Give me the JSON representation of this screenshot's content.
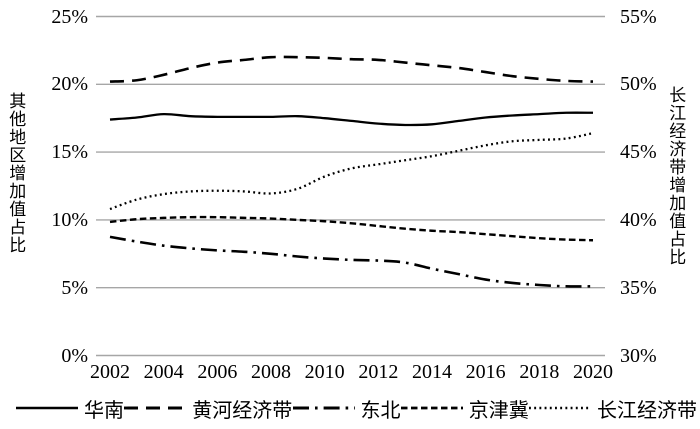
{
  "chart_data": {
    "type": "line",
    "x": [
      2002,
      2003,
      2004,
      2005,
      2006,
      2007,
      2008,
      2009,
      2010,
      2011,
      2012,
      2013,
      2014,
      2015,
      2016,
      2017,
      2018,
      2019,
      2020
    ],
    "x_ticks": [
      "2002",
      "2004",
      "2006",
      "2008",
      "2010",
      "2012",
      "2014",
      "2016",
      "2018",
      "2020"
    ],
    "left_axis": {
      "title": "其他地区增加值占比",
      "ticks": [
        "25%",
        "20%",
        "15%",
        "10%",
        "5%",
        "0%"
      ],
      "range": [
        0,
        25
      ]
    },
    "right_axis": {
      "title": "长江经济带增加值占比",
      "ticks": [
        "55%",
        "50%",
        "45%",
        "40%",
        "35%",
        "30%"
      ],
      "range": [
        30,
        55
      ]
    },
    "grid": "horizontal",
    "legend_position": "bottom",
    "colors": {
      "line": "#000000",
      "grid": "#a6a6a6",
      "background": "#ffffff"
    },
    "series": [
      {
        "name": "华南",
        "axis": "left",
        "style": "solid",
        "values": [
          17.4,
          17.55,
          17.8,
          17.65,
          17.6,
          17.6,
          17.6,
          17.65,
          17.5,
          17.3,
          17.1,
          17.0,
          17.05,
          17.3,
          17.55,
          17.7,
          17.8,
          17.9,
          17.9
        ]
      },
      {
        "name": "黄河经济带",
        "axis": "left",
        "style": "long-dash",
        "values": [
          20.2,
          20.3,
          20.7,
          21.2,
          21.6,
          21.8,
          22.0,
          22.0,
          21.95,
          21.85,
          21.8,
          21.6,
          21.4,
          21.2,
          20.9,
          20.6,
          20.4,
          20.25,
          20.2
        ]
      },
      {
        "name": "东北",
        "axis": "left",
        "style": "dash-dot",
        "values": [
          8.75,
          8.4,
          8.1,
          7.9,
          7.75,
          7.65,
          7.5,
          7.3,
          7.15,
          7.05,
          7.0,
          6.85,
          6.4,
          6.0,
          5.6,
          5.35,
          5.2,
          5.1,
          5.1
        ]
      },
      {
        "name": "京津冀",
        "axis": "left",
        "style": "short-dash",
        "values": [
          9.85,
          10.05,
          10.15,
          10.2,
          10.2,
          10.15,
          10.1,
          10.0,
          9.9,
          9.75,
          9.55,
          9.35,
          9.2,
          9.1,
          8.95,
          8.8,
          8.65,
          8.55,
          8.5
        ]
      },
      {
        "name": "长江经济带",
        "axis": "right",
        "style": "dotted",
        "values": [
          40.8,
          41.5,
          41.9,
          42.1,
          42.15,
          42.1,
          41.95,
          42.3,
          43.2,
          43.8,
          44.1,
          44.4,
          44.7,
          45.1,
          45.5,
          45.8,
          45.9,
          46.0,
          46.4
        ]
      }
    ]
  }
}
